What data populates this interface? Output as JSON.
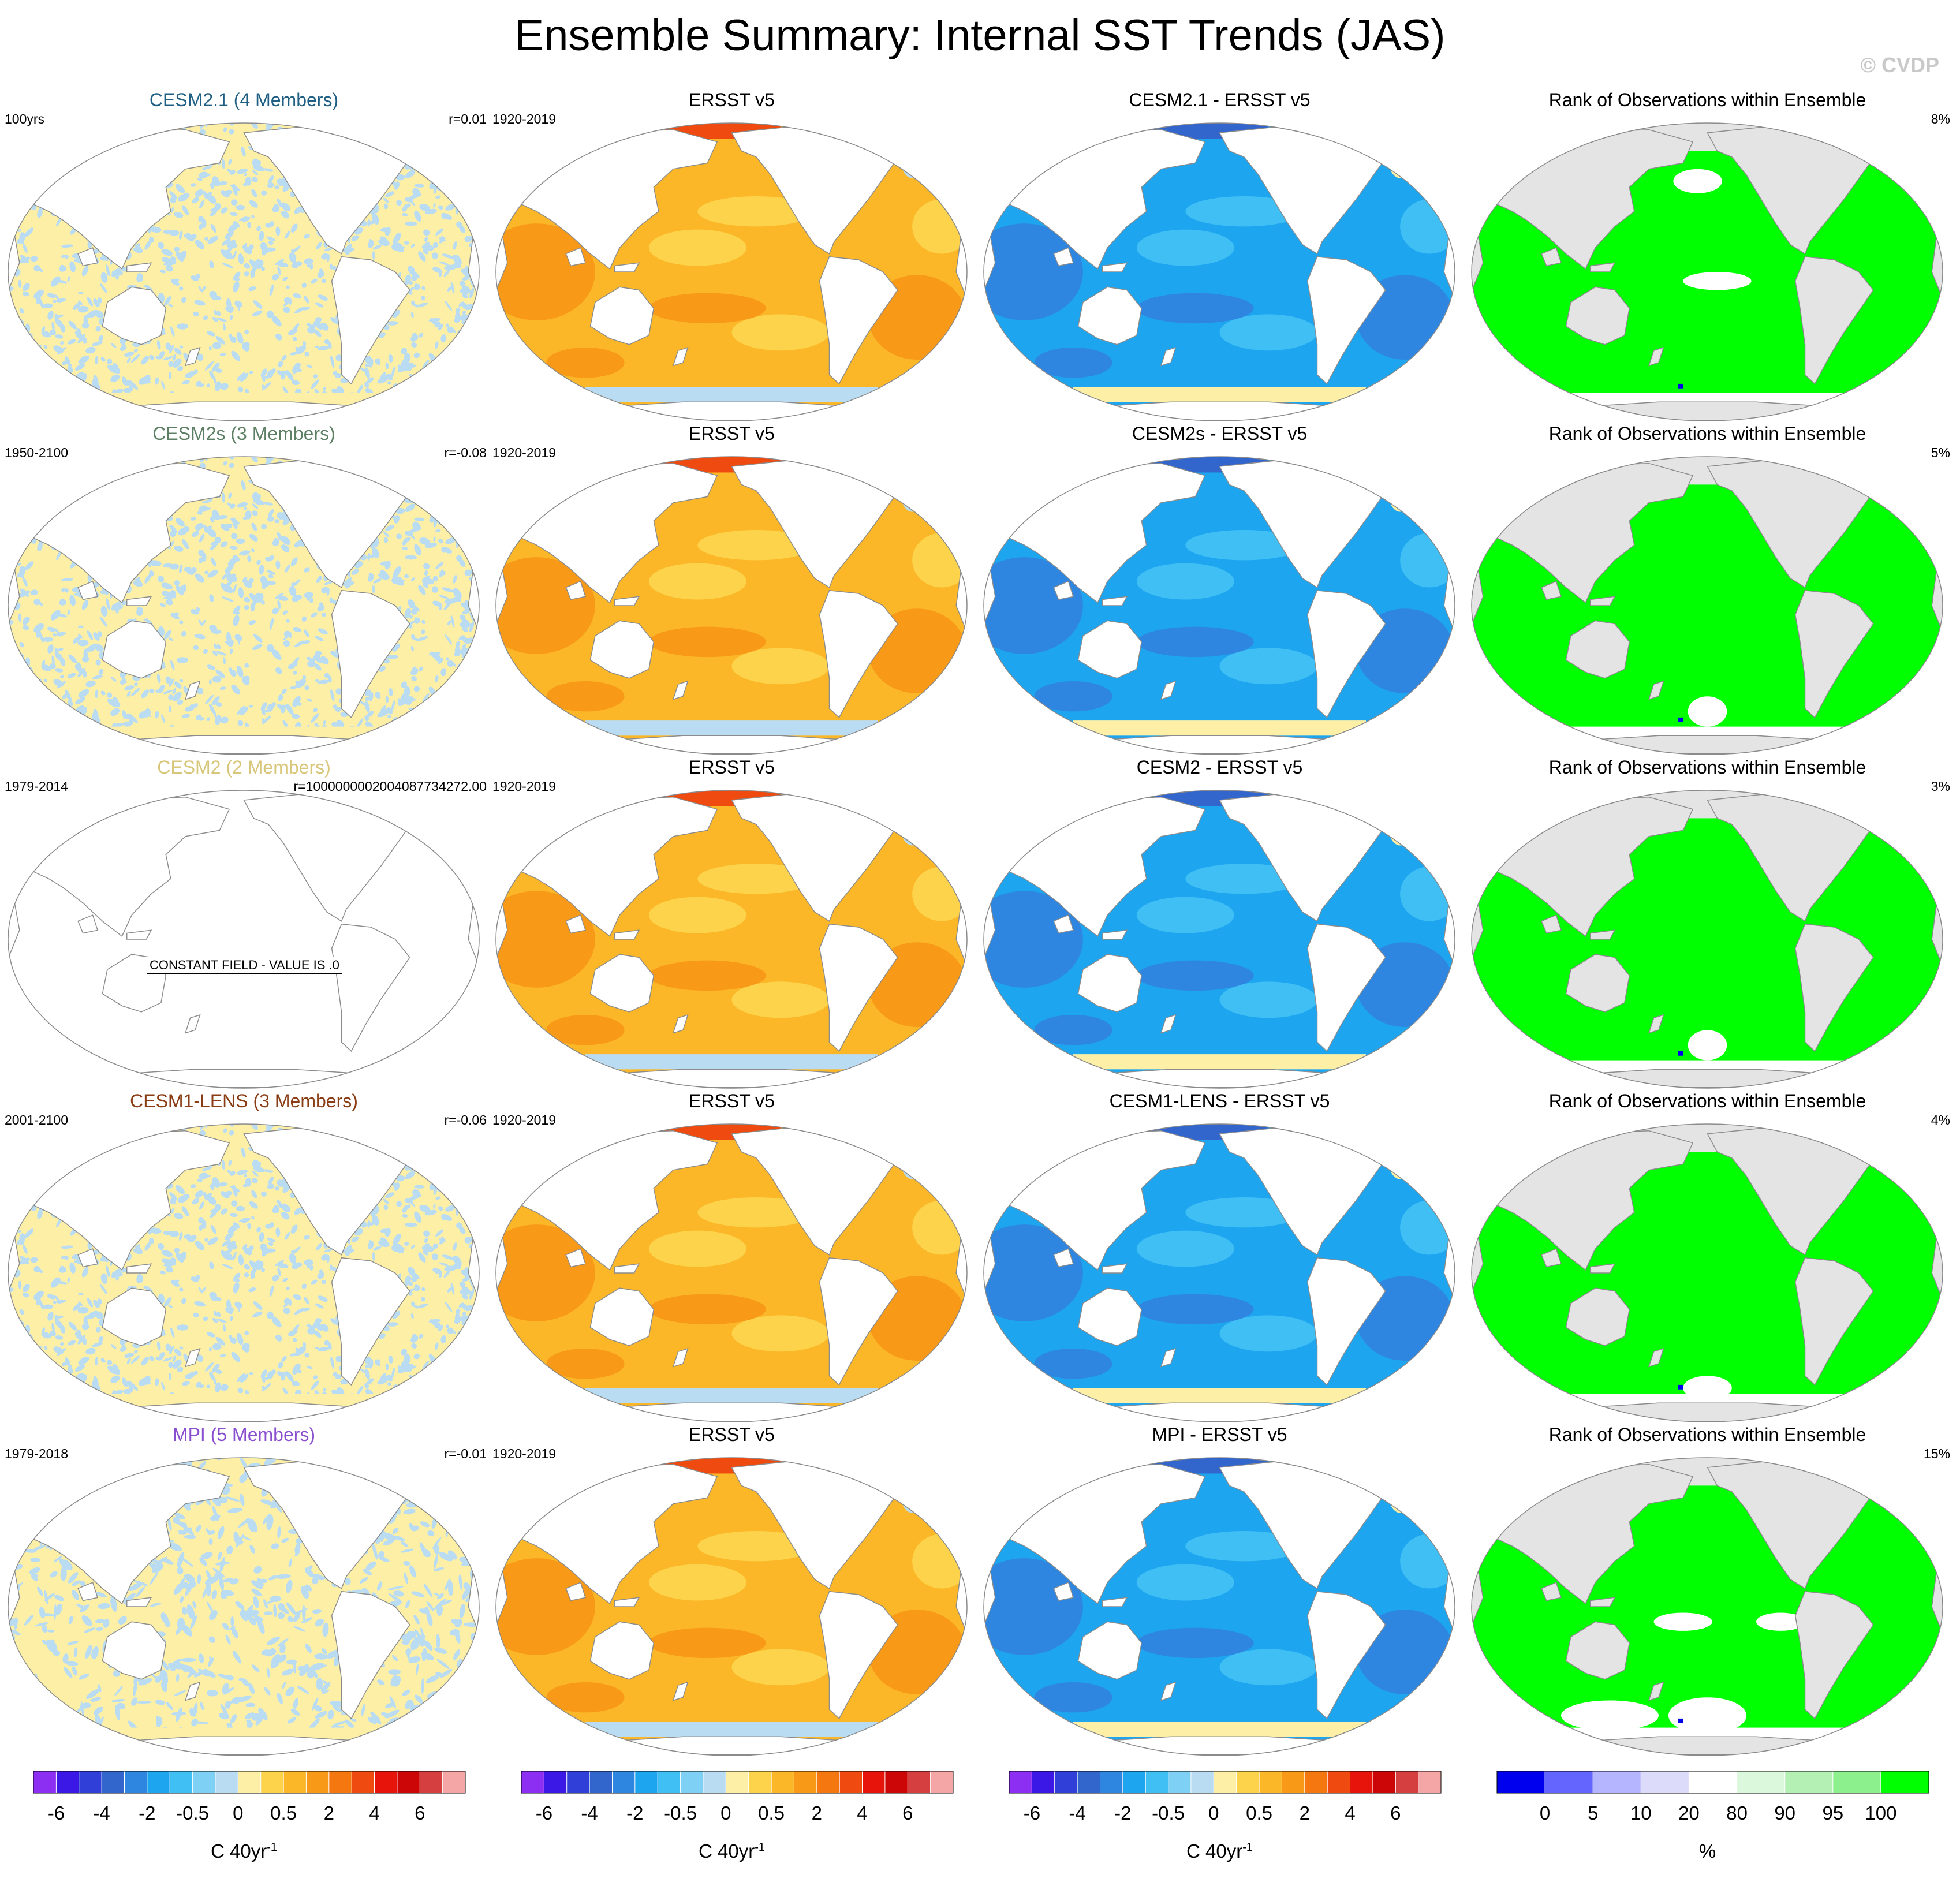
{
  "title": "Ensemble Summary: Internal SST Trends (JAS)",
  "copyright": "© CVDP",
  "colors": {
    "land_fill": "#ffffff",
    "coast": "#8c8c8c",
    "rank_land": "#e4e4e4",
    "rank_ocean": "#00ff00",
    "neutral_pos": "#fdf0a6",
    "neutral_neg": "#b9dcf3"
  },
  "rows": [
    {
      "model": {
        "title": "CESM2.1 (4 Members)",
        "title_color": "#1f5f84",
        "left": "100yrs",
        "right": "r=0.01",
        "field": "noise"
      },
      "obs": {
        "title": "ERSST v5",
        "left": "1920-2019"
      },
      "diff": {
        "title": "CESM2.1 - ERSST v5"
      },
      "rank": {
        "title": "Rank of Observations within Ensemble",
        "right": "8%",
        "pattern": "rank1"
      }
    },
    {
      "model": {
        "title": "CESM2s (3 Members)",
        "title_color": "#5d8065",
        "left": "1950-2100",
        "right": "r=-0.08",
        "field": "noise"
      },
      "obs": {
        "title": "ERSST v5",
        "left": "1920-2019"
      },
      "diff": {
        "title": "CESM2s - ERSST v5"
      },
      "rank": {
        "title": "Rank of Observations within Ensemble",
        "right": "5%",
        "pattern": "rank2"
      }
    },
    {
      "model": {
        "title": "CESM2 (2 Members)",
        "title_color": "#d8c77a",
        "left": "1979-2014",
        "right": "r=1000000002004087734272.00",
        "field": "constant",
        "note": "CONSTANT FIELD - VALUE IS .0"
      },
      "obs": {
        "title": "ERSST v5",
        "left": "1920-2019"
      },
      "diff": {
        "title": "CESM2 - ERSST v5"
      },
      "rank": {
        "title": "Rank of Observations within Ensemble",
        "right": "3%",
        "pattern": "rank3"
      }
    },
    {
      "model": {
        "title": "CESM1-LENS (3 Members)",
        "title_color": "#8a3d14",
        "left": "2001-2100",
        "right": "r=-0.06",
        "field": "noise"
      },
      "obs": {
        "title": "ERSST v5",
        "left": "1920-2019"
      },
      "diff": {
        "title": "CESM1-LENS - ERSST v5"
      },
      "rank": {
        "title": "Rank of Observations within Ensemble",
        "right": "4%",
        "pattern": "rank4"
      }
    },
    {
      "model": {
        "title": "MPI (5 Members)",
        "title_color": "#8a4fcf",
        "left": "1979-2018",
        "right": "r=-0.01",
        "field": "noise2"
      },
      "obs": {
        "title": "ERSST v5",
        "left": "1920-2019"
      },
      "diff": {
        "title": "MPI - ERSST v5"
      },
      "rank": {
        "title": "Rank of Observations within Ensemble",
        "right": "15%",
        "pattern": "rank5"
      }
    }
  ],
  "colorbars": {
    "trend": {
      "unit": "C 40yr",
      "unit_sup": "-1",
      "colors": [
        "#8c2ff2",
        "#3c18e6",
        "#2f3fd8",
        "#3366cc",
        "#2e86e0",
        "#1da5f0",
        "#40bff5",
        "#7fd0f5",
        "#b9dcf3",
        "#fdf0a6",
        "#fcd34a",
        "#fbb728",
        "#f89918",
        "#f5770f",
        "#ef4b10",
        "#e6140a",
        "#cc0606",
        "#d53f3f",
        "#f4a6a6"
      ],
      "labels": [
        "-6",
        "-4",
        "-2",
        "-0.5",
        "0",
        "0.5",
        "2",
        "4",
        "6"
      ],
      "label_boundaries": [
        1,
        3,
        5,
        7,
        9,
        11,
        13,
        15,
        17
      ]
    },
    "rank": {
      "unit": "%",
      "colors": [
        "#0000ee",
        "#6464ff",
        "#b4b4ff",
        "#dcdcfa",
        "#ffffff",
        "#dcf8dc",
        "#b4f0b4",
        "#8cf08c",
        "#00ff00"
      ],
      "labels": [
        "0",
        "5",
        "10",
        "20",
        "80",
        "90",
        "95",
        "100"
      ],
      "label_boundaries": [
        1,
        2,
        3,
        4,
        5,
        6,
        7,
        8
      ]
    }
  }
}
